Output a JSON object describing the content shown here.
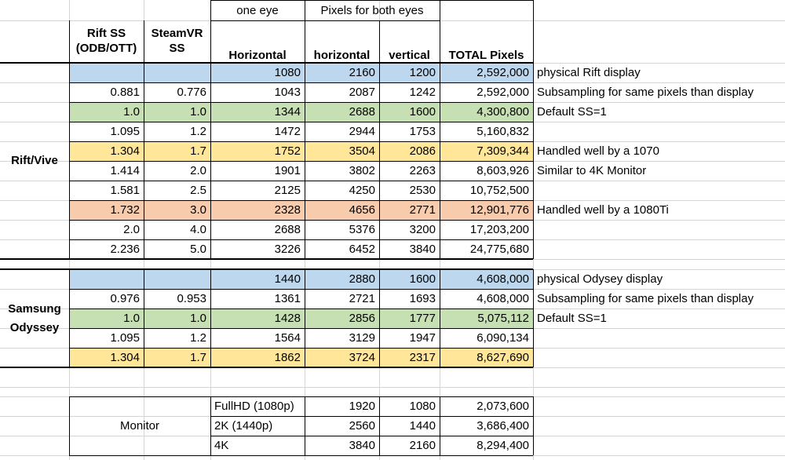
{
  "headers": {
    "top_one_eye": "one eye",
    "top_both_eyes": "Pixels for both eyes",
    "rift_ss_line1": "Rift SS",
    "rift_ss_line2": "(ODB/OTT)",
    "steamvr_line1": "SteamVR",
    "steamvr_line2": "SS",
    "horizontal": "Horizontal",
    "horizontal_both": "horizontal",
    "vertical": "vertical",
    "total": "TOTAL Pixels"
  },
  "groups": {
    "rift": "Rift/Vive",
    "odyssey_line1": "Samsung",
    "odyssey_line2": "Odyssey",
    "monitor": "Monitor"
  },
  "colors": {
    "blue": "#bdd7ee",
    "green": "#c6e0b4",
    "yellow": "#ffe699",
    "orange": "#f8cbad"
  },
  "rift_rows": [
    {
      "rift_ss": "",
      "steamvr_ss": "",
      "one_eye_h": "1080",
      "both_h": "2160",
      "both_v": "1200",
      "total": "2,592,000",
      "note": "physical Rift display",
      "color": "blue"
    },
    {
      "rift_ss": "0.881",
      "steamvr_ss": "0.776",
      "one_eye_h": "1043",
      "both_h": "2087",
      "both_v": "1242",
      "total": "2,592,000",
      "note": "Subsampling for same pixels than display",
      "color": ""
    },
    {
      "rift_ss": "1.0",
      "steamvr_ss": "1.0",
      "one_eye_h": "1344",
      "both_h": "2688",
      "both_v": "1600",
      "total": "4,300,800",
      "note": "Default SS=1",
      "color": "green"
    },
    {
      "rift_ss": "1.095",
      "steamvr_ss": "1.2",
      "one_eye_h": "1472",
      "both_h": "2944",
      "both_v": "1753",
      "total": "5,160,832",
      "note": "",
      "color": ""
    },
    {
      "rift_ss": "1.304",
      "steamvr_ss": "1.7",
      "one_eye_h": "1752",
      "both_h": "3504",
      "both_v": "2086",
      "total": "7,309,344",
      "note": "Handled well by a 1070",
      "color": "yellow"
    },
    {
      "rift_ss": "1.414",
      "steamvr_ss": "2.0",
      "one_eye_h": "1901",
      "both_h": "3802",
      "both_v": "2263",
      "total": "8,603,926",
      "note": "Similar to 4K Monitor",
      "color": ""
    },
    {
      "rift_ss": "1.581",
      "steamvr_ss": "2.5",
      "one_eye_h": "2125",
      "both_h": "4250",
      "both_v": "2530",
      "total": "10,752,500",
      "note": "",
      "color": ""
    },
    {
      "rift_ss": "1.732",
      "steamvr_ss": "3.0",
      "one_eye_h": "2328",
      "both_h": "4656",
      "both_v": "2771",
      "total": "12,901,776",
      "note": "Handled well by a 1080Ti",
      "color": "orange"
    },
    {
      "rift_ss": "2.0",
      "steamvr_ss": "4.0",
      "one_eye_h": "2688",
      "both_h": "5376",
      "both_v": "3200",
      "total": "17,203,200",
      "note": "",
      "color": ""
    },
    {
      "rift_ss": "2.236",
      "steamvr_ss": "5.0",
      "one_eye_h": "3226",
      "both_h": "6452",
      "both_v": "3840",
      "total": "24,775,680",
      "note": "",
      "color": ""
    }
  ],
  "odyssey_rows": [
    {
      "rift_ss": "",
      "steamvr_ss": "",
      "one_eye_h": "1440",
      "both_h": "2880",
      "both_v": "1600",
      "total": "4,608,000",
      "note": "physical Odysey display",
      "color": "blue"
    },
    {
      "rift_ss": "0.976",
      "steamvr_ss": "0.953",
      "one_eye_h": "1361",
      "both_h": "2721",
      "both_v": "1693",
      "total": "4,608,000",
      "note": "Subsampling for same pixels than display",
      "color": ""
    },
    {
      "rift_ss": "1.0",
      "steamvr_ss": "1.0",
      "one_eye_h": "1428",
      "both_h": "2856",
      "both_v": "1777",
      "total": "5,075,112",
      "note": "Default SS=1",
      "color": "green"
    },
    {
      "rift_ss": "1.095",
      "steamvr_ss": "1.2",
      "one_eye_h": "1564",
      "both_h": "3129",
      "both_v": "1947",
      "total": "6,090,134",
      "note": "",
      "color": ""
    },
    {
      "rift_ss": "1.304",
      "steamvr_ss": "1.7",
      "one_eye_h": "1862",
      "both_h": "3724",
      "both_v": "2317",
      "total": "8,627,690",
      "note": "",
      "color": "yellow"
    }
  ],
  "monitor_rows": [
    {
      "name": "FullHD (1080p)",
      "h": "1920",
      "v": "1080",
      "total": "2,073,600"
    },
    {
      "name": "2K (1440p)",
      "h": "2560",
      "v": "1440",
      "total": "3,686,400"
    },
    {
      "name": "4K",
      "h": "3840",
      "v": "2160",
      "total": "8,294,400"
    }
  ]
}
